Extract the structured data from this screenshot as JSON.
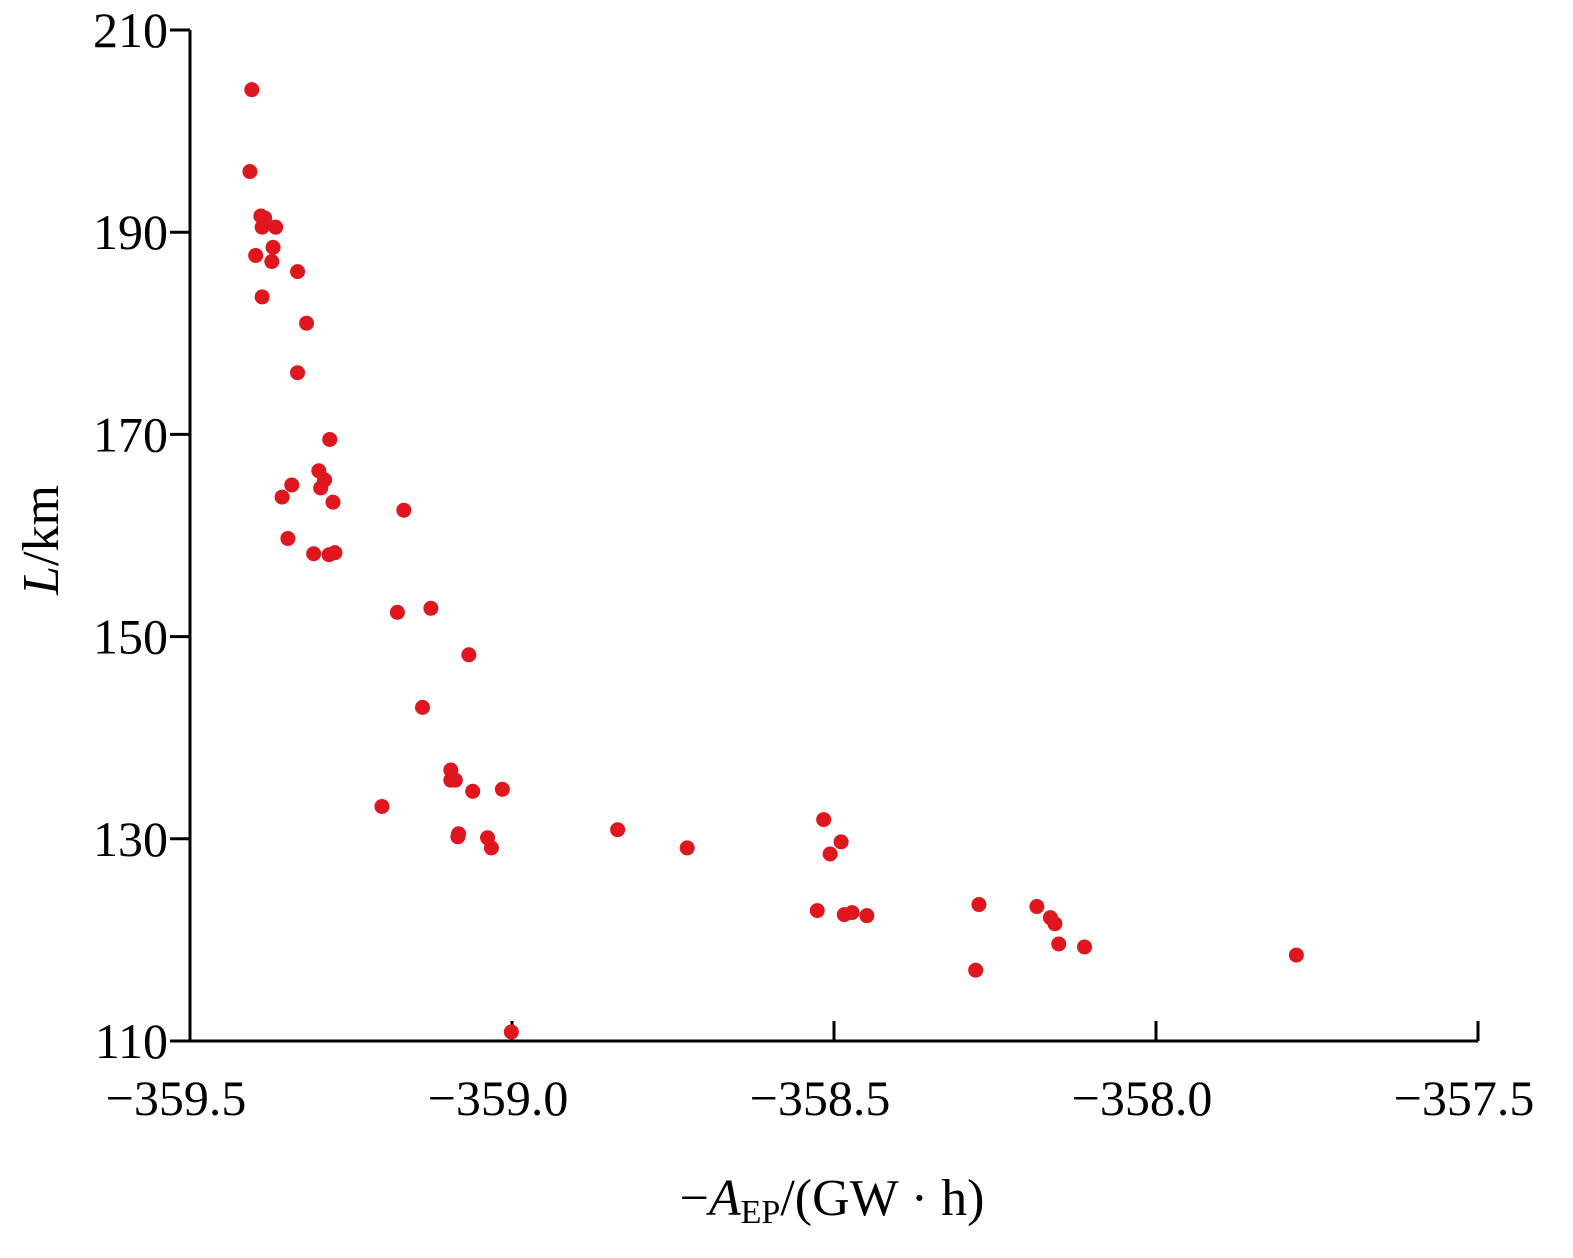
{
  "chart_data": {
    "type": "scatter",
    "title": "",
    "xlabel": {
      "prefix": "−",
      "var": "A",
      "sub": "EP",
      "unit": "/(GW · h)"
    },
    "ylabel": {
      "var": "L",
      "unit": "/km"
    },
    "xlim": [
      -359.5,
      -357.5
    ],
    "ylim": [
      110,
      210
    ],
    "xticks": [
      -359.5,
      -359.0,
      -358.5,
      -358.0,
      -357.5
    ],
    "xtick_labels": [
      "−359.5",
      "−359.0",
      "−358.5",
      "−358.0",
      "−357.5"
    ],
    "yticks": [
      110,
      130,
      150,
      170,
      190,
      210
    ],
    "ytick_labels": [
      "110",
      "130",
      "150",
      "170",
      "190",
      "210"
    ],
    "grid": false,
    "marker_color": "#e0161e",
    "points": [
      [
        -359.404,
        204.1
      ],
      [
        -359.407,
        196.0
      ],
      [
        -359.39,
        191.6
      ],
      [
        -359.384,
        191.4
      ],
      [
        -359.388,
        190.5
      ],
      [
        -359.367,
        190.5
      ],
      [
        -359.371,
        188.5
      ],
      [
        -359.398,
        187.7
      ],
      [
        -359.373,
        187.1
      ],
      [
        -359.333,
        186.1
      ],
      [
        -359.388,
        183.6
      ],
      [
        -359.319,
        181.0
      ],
      [
        -359.333,
        176.1
      ],
      [
        -359.283,
        169.5
      ],
      [
        -359.3,
        166.4
      ],
      [
        -359.291,
        165.5
      ],
      [
        -359.342,
        165.0
      ],
      [
        -359.297,
        164.7
      ],
      [
        -359.357,
        163.8
      ],
      [
        -359.278,
        163.3
      ],
      [
        -359.168,
        162.5
      ],
      [
        -359.348,
        159.7
      ],
      [
        -359.308,
        158.2
      ],
      [
        -359.284,
        158.1
      ],
      [
        -359.275,
        158.3
      ],
      [
        -359.178,
        152.4
      ],
      [
        -359.126,
        152.8
      ],
      [
        -359.067,
        148.2
      ],
      [
        -359.139,
        143.0
      ],
      [
        -359.095,
        136.8
      ],
      [
        -359.095,
        135.8
      ],
      [
        -359.088,
        135.8
      ],
      [
        -359.061,
        134.7
      ],
      [
        -359.015,
        134.9
      ],
      [
        -359.202,
        133.2
      ],
      [
        -359.083,
        130.5
      ],
      [
        -359.084,
        130.2
      ],
      [
        -359.038,
        130.1
      ],
      [
        -359.032,
        129.1
      ],
      [
        -358.836,
        130.9
      ],
      [
        -358.728,
        129.1
      ],
      [
        -359.001,
        110.9
      ],
      [
        -358.516,
        131.9
      ],
      [
        -358.489,
        129.7
      ],
      [
        -358.506,
        128.5
      ],
      [
        -358.526,
        122.9
      ],
      [
        -358.484,
        122.5
      ],
      [
        -358.472,
        122.7
      ],
      [
        -358.449,
        122.4
      ],
      [
        -358.275,
        123.5
      ],
      [
        -358.28,
        117.0
      ],
      [
        -358.185,
        123.3
      ],
      [
        -358.164,
        122.2
      ],
      [
        -358.157,
        121.6
      ],
      [
        -358.151,
        119.6
      ],
      [
        -358.111,
        119.3
      ],
      [
        -357.782,
        118.5
      ]
    ]
  }
}
